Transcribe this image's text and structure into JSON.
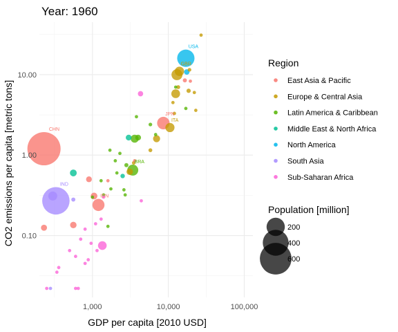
{
  "chart_data": {
    "type": "scatter",
    "title": "Year: 1960",
    "xlabel": "GDP per capita [2010 USD]",
    "ylabel": "CO2 emissions per capita [metric tons]",
    "x_scale": "log10",
    "y_scale": "log10",
    "xlim": [
      200,
      130000
    ],
    "ylim": [
      0.017,
      45
    ],
    "x_ticks": [
      1000,
      10000,
      100000
    ],
    "x_tick_labels": [
      "1,000",
      "10,000",
      "100,000"
    ],
    "y_ticks": [
      0.1,
      1,
      10
    ],
    "y_tick_labels": [
      "0.10",
      "1.00",
      "10.00"
    ],
    "grid": true,
    "legend_position": "right",
    "color_legend": {
      "title": "Region",
      "entries": [
        {
          "name": "East Asia & Pacific",
          "color": "#F8766D"
        },
        {
          "name": "Europe & Central Asia",
          "color": "#C49A00"
        },
        {
          "name": "Latin America & Caribbean",
          "color": "#53B400"
        },
        {
          "name": "Middle East & North Africa",
          "color": "#00C094"
        },
        {
          "name": "North America",
          "color": "#00B6EB"
        },
        {
          "name": "South Asia",
          "color": "#A58AFF"
        },
        {
          "name": "Sub-Saharan Africa",
          "color": "#FB61D7"
        }
      ]
    },
    "size_legend": {
      "title": "Population [million]",
      "entries": [
        {
          "label": "200",
          "value": 200
        },
        {
          "label": "400",
          "value": 400
        },
        {
          "label": "600",
          "value": 600
        }
      ]
    },
    "point_labels": [
      {
        "text": "USA",
        "x": 17000,
        "y": 16
      },
      {
        "text": "GBR",
        "x": 14000,
        "y": 11
      },
      {
        "text": "JPN",
        "x": 8600,
        "y": 2.5
      },
      {
        "text": "ITA",
        "x": 10500,
        "y": 2.2
      },
      {
        "text": "CHN",
        "x": 230,
        "y": 1.2
      },
      {
        "text": "BRA",
        "x": 3400,
        "y": 0.65
      },
      {
        "text": "IND",
        "x": 330,
        "y": 0.27
      },
      {
        "text": "IDN",
        "x": 1200,
        "y": 0.24
      }
    ],
    "points": [
      {
        "region": "North America",
        "x": 17000,
        "y": 16,
        "pop": 180
      },
      {
        "region": "North America",
        "x": 17500,
        "y": 10.8,
        "pop": 18
      },
      {
        "region": "Europe & Central Asia",
        "x": 27000,
        "y": 31,
        "pop": 0.2
      },
      {
        "region": "Europe & Central Asia",
        "x": 14000,
        "y": 11,
        "pop": 52
      },
      {
        "region": "Europe & Central Asia",
        "x": 13000,
        "y": 10,
        "pop": 72
      },
      {
        "region": "Europe & Central Asia",
        "x": 19000,
        "y": 11.5,
        "pop": 8
      },
      {
        "region": "Europe & Central Asia",
        "x": 18500,
        "y": 6.3,
        "pop": 11
      },
      {
        "region": "Europe & Central Asia",
        "x": 12500,
        "y": 5.8,
        "pop": 46
      },
      {
        "region": "Europe & Central Asia",
        "x": 13500,
        "y": 7,
        "pop": 9
      },
      {
        "region": "Europe & Central Asia",
        "x": 22000,
        "y": 6,
        "pop": 4
      },
      {
        "region": "Europe & Central Asia",
        "x": 11500,
        "y": 4.5,
        "pop": 5
      },
      {
        "region": "Europe & Central Asia",
        "x": 12000,
        "y": 3.3,
        "pop": 7
      },
      {
        "region": "Europe & Central Asia",
        "x": 10500,
        "y": 2.2,
        "pop": 50
      },
      {
        "region": "Europe & Central Asia",
        "x": 23000,
        "y": 3.6,
        "pop": 3
      },
      {
        "region": "Europe & Central Asia",
        "x": 7000,
        "y": 1.6,
        "pop": 30
      },
      {
        "region": "Europe & Central Asia",
        "x": 5800,
        "y": 1.15,
        "pop": 9
      },
      {
        "region": "Europe & Central Asia",
        "x": 3500,
        "y": 0.8,
        "pop": 8
      },
      {
        "region": "Europe & Central Asia",
        "x": 3100,
        "y": 0.62,
        "pop": 25
      },
      {
        "region": "Latin America & Caribbean",
        "x": 12500,
        "y": 7,
        "pop": 3
      },
      {
        "region": "Latin America & Caribbean",
        "x": 17000,
        "y": 3.8,
        "pop": 1
      },
      {
        "region": "Latin America & Caribbean",
        "x": 3800,
        "y": 3,
        "pop": 1
      },
      {
        "region": "Latin America & Caribbean",
        "x": 5800,
        "y": 2.4,
        "pop": 8
      },
      {
        "region": "Latin America & Caribbean",
        "x": 6800,
        "y": 1.8,
        "pop": 2
      },
      {
        "region": "Latin America & Caribbean",
        "x": 4000,
        "y": 1.65,
        "pop": 20
      },
      {
        "region": "Latin America & Caribbean",
        "x": 3600,
        "y": 1.6,
        "pop": 38
      },
      {
        "region": "Latin America & Caribbean",
        "x": 1700,
        "y": 1.15,
        "pop": 2
      },
      {
        "region": "Latin America & Caribbean",
        "x": 2300,
        "y": 1.05,
        "pop": 4
      },
      {
        "region": "Latin America & Caribbean",
        "x": 2000,
        "y": 0.85,
        "pop": 1
      },
      {
        "region": "Latin America & Caribbean",
        "x": 2800,
        "y": 0.75,
        "pop": 10
      },
      {
        "region": "Latin America & Caribbean",
        "x": 3400,
        "y": 0.65,
        "pop": 72
      },
      {
        "region": "Latin America & Caribbean",
        "x": 2100,
        "y": 0.6,
        "pop": 3
      },
      {
        "region": "Latin America & Caribbean",
        "x": 1300,
        "y": 0.48,
        "pop": 4
      },
      {
        "region": "Latin America & Caribbean",
        "x": 1750,
        "y": 0.38,
        "pop": 4
      },
      {
        "region": "Latin America & Caribbean",
        "x": 2600,
        "y": 0.37,
        "pop": 3
      },
      {
        "region": "Latin America & Caribbean",
        "x": 2700,
        "y": 0.32,
        "pop": 5
      },
      {
        "region": "Latin America & Caribbean",
        "x": 1400,
        "y": 0.32,
        "pop": 2
      },
      {
        "region": "Latin America & Caribbean",
        "x": 1000,
        "y": 0.3,
        "pop": 3
      },
      {
        "region": "Latin America & Caribbean",
        "x": 1600,
        "y": 0.13,
        "pop": 4
      },
      {
        "region": "Middle East & North Africa",
        "x": 3000,
        "y": 1.65,
        "pop": 20
      },
      {
        "region": "Middle East & North Africa",
        "x": 560,
        "y": 0.6,
        "pop": 28
      },
      {
        "region": "Middle East & North Africa",
        "x": 2500,
        "y": 0.55,
        "pop": 12
      },
      {
        "region": "South Asia",
        "x": 330,
        "y": 0.27,
        "pop": 450
      },
      {
        "region": "South Asia",
        "x": 300,
        "y": 0.31,
        "pop": 48
      },
      {
        "region": "South Asia",
        "x": 560,
        "y": 0.28,
        "pop": 10
      },
      {
        "region": "South Asia",
        "x": 280,
        "y": 0.022,
        "pop": 2
      },
      {
        "region": "East Asia & Pacific",
        "x": 230,
        "y": 1.2,
        "pop": 660
      },
      {
        "region": "East Asia & Pacific",
        "x": 8600,
        "y": 2.5,
        "pop": 94
      },
      {
        "region": "East Asia & Pacific",
        "x": 16500,
        "y": 8.5,
        "pop": 10
      },
      {
        "region": "East Asia & Pacific",
        "x": 19500,
        "y": 8.3,
        "pop": 3
      },
      {
        "region": "East Asia & Pacific",
        "x": 1200,
        "y": 0.24,
        "pop": 88
      },
      {
        "region": "East Asia & Pacific",
        "x": 900,
        "y": 0.5,
        "pop": 20
      },
      {
        "region": "East Asia & Pacific",
        "x": 1600,
        "y": 0.48,
        "pop": 4
      },
      {
        "region": "East Asia & Pacific",
        "x": 1050,
        "y": 0.31,
        "pop": 27
      },
      {
        "region": "East Asia & Pacific",
        "x": 3600,
        "y": 0.85,
        "pop": 2
      },
      {
        "region": "East Asia & Pacific",
        "x": 560,
        "y": 0.135,
        "pop": 25
      },
      {
        "region": "East Asia & Pacific",
        "x": 230,
        "y": 0.125,
        "pop": 22
      },
      {
        "region": "Sub-Saharan Africa",
        "x": 4300,
        "y": 5.8,
        "pop": 17
      },
      {
        "region": "Sub-Saharan Africa",
        "x": 4400,
        "y": 0.27,
        "pop": 1
      },
      {
        "region": "Sub-Saharan Africa",
        "x": 1300,
        "y": 0.16,
        "pop": 5
      },
      {
        "region": "Sub-Saharan Africa",
        "x": 1100,
        "y": 0.14,
        "pop": 4
      },
      {
        "region": "Sub-Saharan Africa",
        "x": 1350,
        "y": 0.075,
        "pop": 45
      },
      {
        "region": "Sub-Saharan Africa",
        "x": 960,
        "y": 0.08,
        "pop": 4
      },
      {
        "region": "Sub-Saharan Africa",
        "x": 800,
        "y": 0.12,
        "pop": 3
      },
      {
        "region": "Sub-Saharan Africa",
        "x": 700,
        "y": 0.09,
        "pop": 3
      },
      {
        "region": "Sub-Saharan Africa",
        "x": 1150,
        "y": 0.065,
        "pop": 4
      },
      {
        "region": "Sub-Saharan Africa",
        "x": 500,
        "y": 0.065,
        "pop": 3
      },
      {
        "region": "Sub-Saharan Africa",
        "x": 600,
        "y": 0.055,
        "pop": 2
      },
      {
        "region": "Sub-Saharan Africa",
        "x": 800,
        "y": 0.045,
        "pop": 3
      },
      {
        "region": "Sub-Saharan Africa",
        "x": 880,
        "y": 0.05,
        "pop": 2
      },
      {
        "region": "Sub-Saharan Africa",
        "x": 360,
        "y": 0.04,
        "pop": 3
      },
      {
        "region": "Sub-Saharan Africa",
        "x": 340,
        "y": 0.035,
        "pop": 2
      },
      {
        "region": "Sub-Saharan Africa",
        "x": 600,
        "y": 0.022,
        "pop": 2
      },
      {
        "region": "Sub-Saharan Africa",
        "x": 650,
        "y": 0.022,
        "pop": 1
      },
      {
        "region": "Sub-Saharan Africa",
        "x": 250,
        "y": 0.022,
        "pop": 1
      },
      {
        "region": "Sub-Saharan Africa",
        "x": 1400,
        "y": 0.3,
        "pop": 2
      }
    ]
  }
}
